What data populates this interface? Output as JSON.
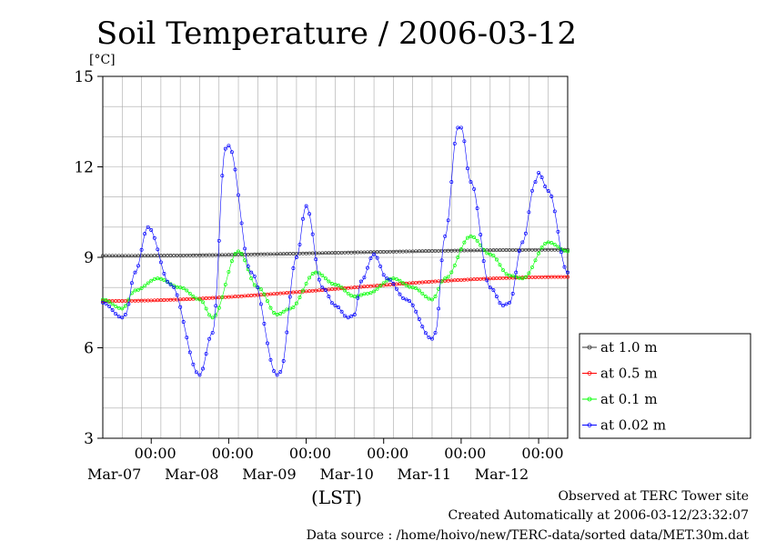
{
  "chart_data": {
    "type": "line",
    "title": "Soil Temperature / 2006-03-12",
    "y_unit": "[°C]",
    "xlabel": "(LST)",
    "ylim": [
      3,
      15
    ],
    "y_ticks": [
      3,
      6,
      9,
      12,
      15
    ],
    "x_range_hours": [
      0,
      144
    ],
    "x_ticks": [
      {
        "line1": "00:00",
        "line2": "Mar-07"
      },
      {
        "line1": "00:00",
        "line2": "Mar-08"
      },
      {
        "line1": "00:00",
        "line2": "Mar-09"
      },
      {
        "line1": "00:00",
        "line2": "Mar-10"
      },
      {
        "line1": "00:00",
        "line2": "Mar-11"
      },
      {
        "line1": "00:00",
        "line2": "Mar-12"
      }
    ],
    "grid": true,
    "legend_position": "right-bottom",
    "series": [
      {
        "name": "at 1.0 m",
        "color": "#333333",
        "x_hours": [
          0,
          144
        ],
        "values": [
          9.05,
          9.25
        ]
      },
      {
        "name": "at 0.5 m",
        "color": "#ff0000",
        "x_hours": [
          0,
          144
        ],
        "values": [
          7.55,
          8.35
        ]
      },
      {
        "name": "at 0.1 m",
        "color": "#00ff00",
        "x_hours": [
          0,
          6,
          10,
          17,
          24,
          30,
          34,
          42,
          48,
          54,
          58,
          66,
          72,
          78,
          82,
          90,
          96,
          102,
          106,
          114,
          120,
          126,
          130,
          138,
          144
        ],
        "values": [
          7.6,
          7.3,
          7.9,
          8.3,
          8.0,
          7.6,
          7.0,
          9.2,
          8.0,
          7.1,
          7.3,
          8.5,
          8.1,
          7.7,
          7.8,
          8.3,
          8.0,
          7.6,
          8.3,
          9.7,
          9.1,
          8.4,
          8.3,
          9.5,
          9.2
        ]
      },
      {
        "name": "at 0.02 m",
        "color": "#0000ff",
        "x_hours": [
          0,
          6,
          7,
          10,
          14,
          21,
          30,
          34,
          38,
          39,
          46,
          54,
          55,
          60,
          63,
          68,
          72,
          76,
          78,
          80,
          84,
          88,
          94,
          102,
          103,
          106,
          110,
          111,
          114,
          120,
          124,
          126,
          130,
          134,
          135,
          138,
          144
        ],
        "values": [
          7.5,
          7.0,
          7.1,
          8.5,
          10.0,
          8.1,
          5.1,
          6.5,
          12.6,
          12.7,
          8.5,
          5.1,
          5.2,
          9.0,
          10.7,
          8.0,
          7.4,
          7.0,
          7.1,
          8.2,
          9.1,
          8.3,
          7.6,
          6.3,
          6.5,
          9.7,
          13.3,
          13.3,
          11.5,
          8.0,
          7.4,
          7.5,
          9.5,
          11.5,
          11.8,
          11.2,
          8.5
        ]
      }
    ]
  },
  "footer": {
    "line1": "Observed at TERC Tower site",
    "line2": "Created Automatically at 2006-03-12/23:32:07",
    "line3": "Data source : /home/hoivo/new/TERC-data/sorted  data/MET.30m.dat"
  }
}
